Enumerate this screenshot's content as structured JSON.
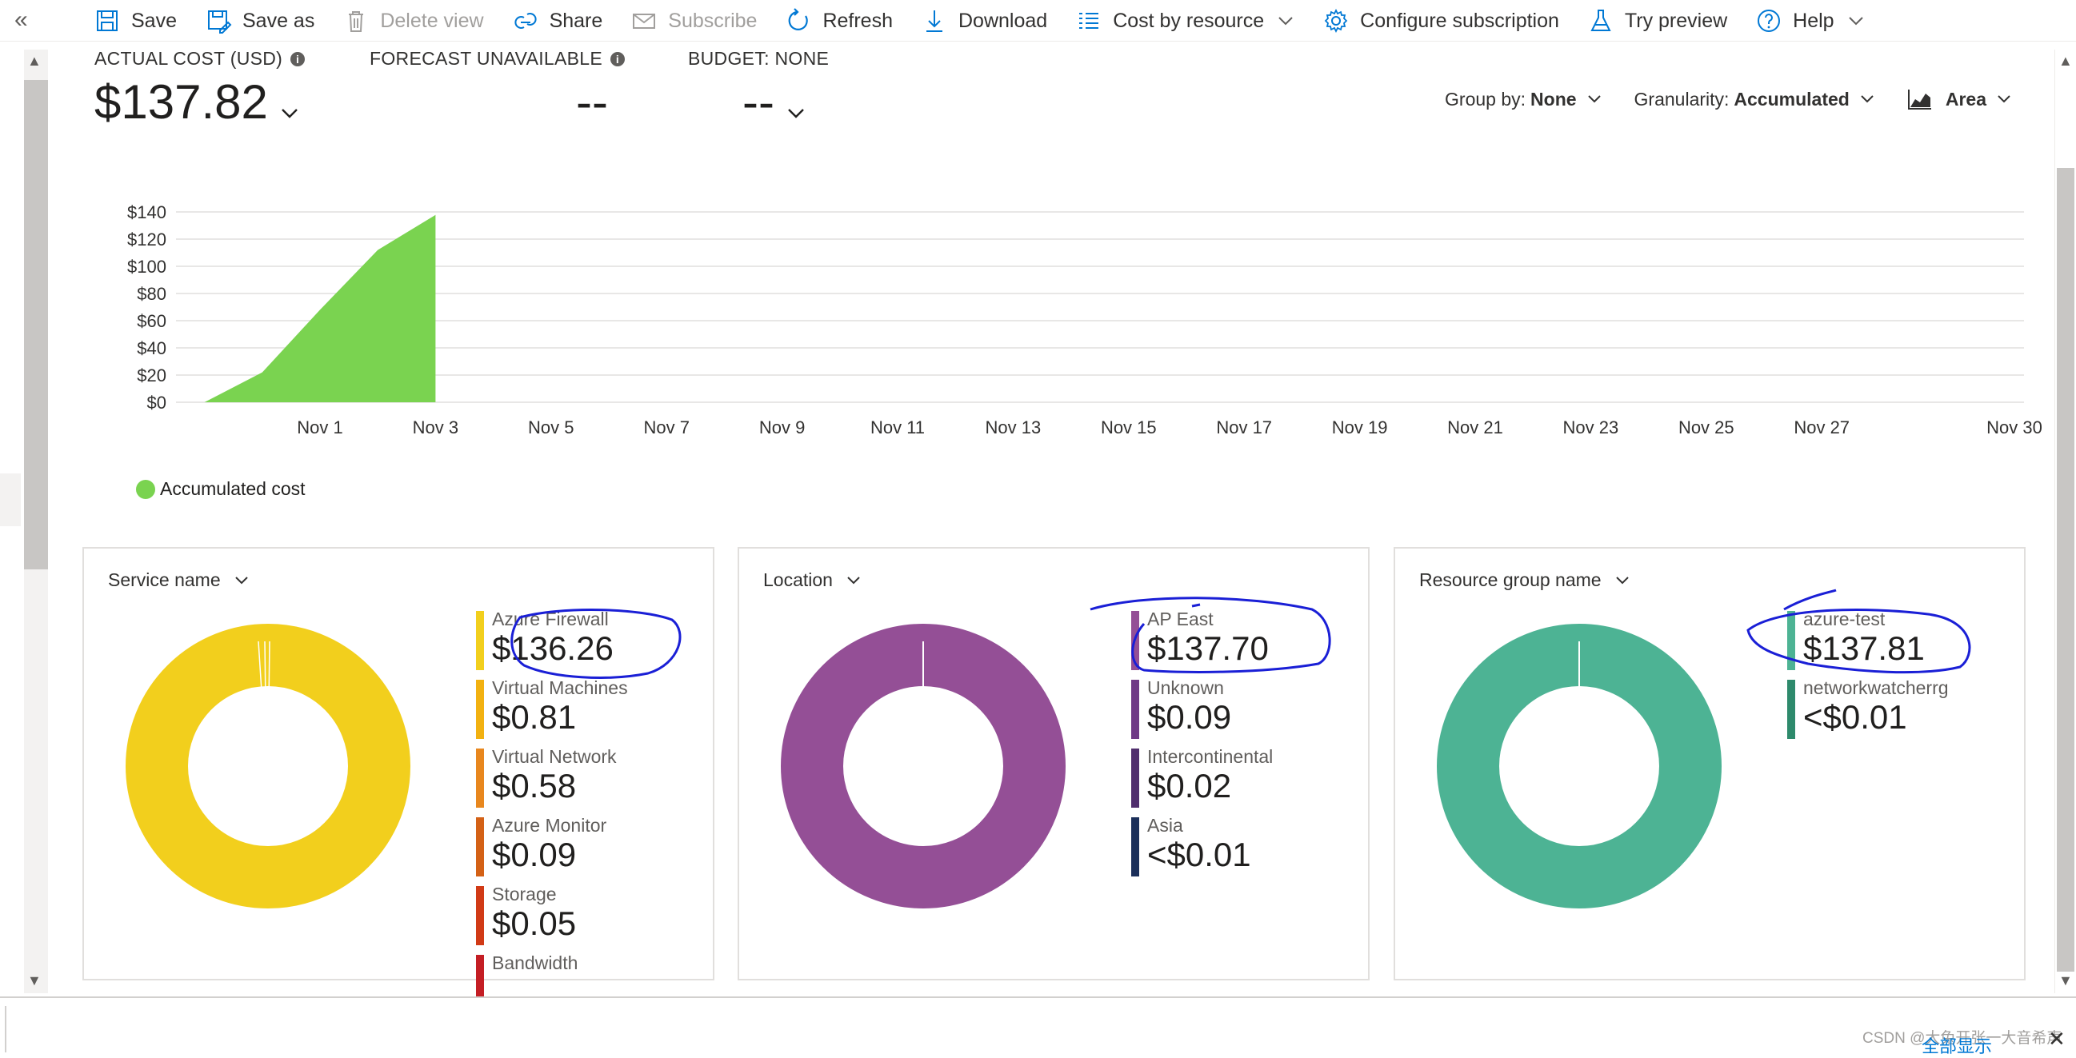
{
  "toolbar": {
    "collapse": "«",
    "items": [
      {
        "label": "Save",
        "icon": "save-icon",
        "disabled": false
      },
      {
        "label": "Save as",
        "icon": "save-as-icon",
        "disabled": false
      },
      {
        "label": "Delete view",
        "icon": "trash-icon",
        "disabled": true
      },
      {
        "label": "Share",
        "icon": "share-icon",
        "disabled": false
      },
      {
        "label": "Subscribe",
        "icon": "mail-icon",
        "disabled": true
      },
      {
        "label": "Refresh",
        "icon": "refresh-icon",
        "disabled": false
      },
      {
        "label": "Download",
        "icon": "download-icon",
        "disabled": false
      },
      {
        "label": "Cost by resource",
        "icon": "list-icon",
        "disabled": false
      },
      {
        "label": "Configure subscription",
        "icon": "gear-icon",
        "disabled": false
      },
      {
        "label": "Try preview",
        "icon": "flask-icon",
        "disabled": false
      },
      {
        "label": "Help",
        "icon": "help-icon",
        "disabled": false
      }
    ]
  },
  "kpis": {
    "actual_label": "ACTUAL COST (USD)",
    "actual_value": "$137.82",
    "forecast_label": "FORECAST UNAVAILABLE",
    "forecast_value": "--",
    "budget_label": "BUDGET: NONE",
    "budget_value": "--"
  },
  "controls": {
    "group_by_label": "Group by:",
    "group_by_value": "None",
    "granularity_label": "Granularity:",
    "granularity_value": "Accumulated",
    "chart_type_value": "Area"
  },
  "chart_data": {
    "type": "area",
    "title": "",
    "xlabel": "",
    "ylabel": "",
    "ylim": [
      0,
      140
    ],
    "yticks": [
      "$0",
      "$20",
      "$40",
      "$60",
      "$80",
      "$100",
      "$120",
      "$140"
    ],
    "xticks": [
      "Nov 1",
      "Nov 3",
      "Nov 5",
      "Nov 7",
      "Nov 9",
      "Nov 11",
      "Nov 13",
      "Nov 15",
      "Nov 17",
      "Nov 19",
      "Nov 21",
      "Nov 23",
      "Nov 25",
      "Nov 27",
      "Nov 30"
    ],
    "series": [
      {
        "name": "Accumulated cost",
        "color": "#7ad350",
        "x": [
          "Oct 30",
          "Oct 31",
          "Nov 1",
          "Nov 2",
          "Nov 3"
        ],
        "values": [
          0,
          22,
          68,
          112,
          137.82
        ]
      }
    ],
    "grid": true,
    "legend_position": "bottom-left"
  },
  "legend": {
    "label": "Accumulated cost",
    "color": "#7ad350"
  },
  "cards": [
    {
      "title": "Service name",
      "color": "#f2cf1d",
      "items": [
        {
          "name": "Azure Firewall",
          "value": "$136.26",
          "color": "#f2cf1d"
        },
        {
          "name": "Virtual Machines",
          "value": "$0.81",
          "color": "#f2b111"
        },
        {
          "name": "Virtual Network",
          "value": "$0.58",
          "color": "#e8871e"
        },
        {
          "name": "Azure Monitor",
          "value": "$0.09",
          "color": "#d46116"
        },
        {
          "name": "Storage",
          "value": "$0.05",
          "color": "#d13a16"
        },
        {
          "name": "Bandwidth",
          "value": "",
          "color": "#c41e24"
        }
      ]
    },
    {
      "title": "Location",
      "color": "#944f96",
      "items": [
        {
          "name": "AP East",
          "value": "$137.70",
          "color": "#944f96"
        },
        {
          "name": "Unknown",
          "value": "$0.09",
          "color": "#6f3a86"
        },
        {
          "name": "Intercontinental",
          "value": "$0.02",
          "color": "#502e6d"
        },
        {
          "name": "Asia",
          "value": "<$0.01",
          "color": "#1b2f5a"
        }
      ]
    },
    {
      "title": "Resource group name",
      "color": "#4db394",
      "items": [
        {
          "name": "azure-test",
          "value": "$137.81",
          "color": "#4db394"
        },
        {
          "name": "networkwatcherrg",
          "value": "<$0.01",
          "color": "#2e8a6c"
        }
      ]
    }
  ],
  "footer": {
    "watermark": "CSDN @大兔开张一大音希声",
    "show_all": "全部显示",
    "close": "✕"
  },
  "annotation_color": "#1a1fd6"
}
